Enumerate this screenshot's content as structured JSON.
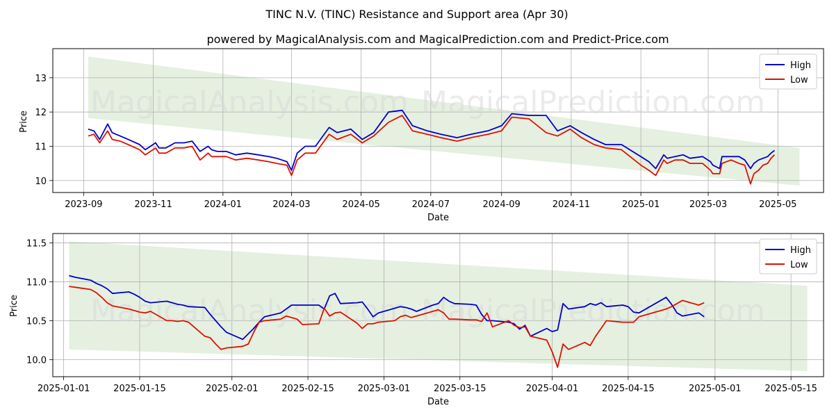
{
  "title": "TINC N.V. (TINC) Resistance and Support area (Apr 30)",
  "subtitle": "powered by MagicalAnalysis.com and MagicalPrediction.com and Predict-Price.com",
  "watermarks": [
    "MagicalAnalysis.com",
    "MagicalPrediction.com"
  ],
  "colors": {
    "high": "#0000cc",
    "low": "#dd1100",
    "band": "#dcebd6",
    "grid": "#b0b0b0"
  },
  "chart_data": [
    {
      "type": "line",
      "xlabel": "Date",
      "ylabel": "Price",
      "grid": true,
      "legend": "top-right",
      "xlim": [
        "2023-08-05",
        "2025-06-10"
      ],
      "ylim": [
        9.65,
        13.85
      ],
      "xticks": [
        "2023-09",
        "2023-11",
        "2024-01",
        "2024-03",
        "2024-05",
        "2024-07",
        "2024-09",
        "2024-11",
        "2025-01",
        "2025-03",
        "2025-05"
      ],
      "xtick_dates": [
        "2023-09-01",
        "2023-11-01",
        "2024-01-01",
        "2024-03-01",
        "2024-05-01",
        "2024-07-01",
        "2024-09-01",
        "2024-11-01",
        "2025-01-01",
        "2025-03-01",
        "2025-05-01"
      ],
      "yticks": [
        10,
        11,
        12,
        13
      ],
      "band": {
        "x": [
          "2023-09-05",
          "2025-05-20"
        ],
        "upper": [
          13.62,
          10.95
        ],
        "lower": [
          11.82,
          9.85
        ]
      },
      "series": [
        {
          "name": "High",
          "x": [
            "2023-09-05",
            "2023-09-10",
            "2023-09-15",
            "2023-09-22",
            "2023-09-26",
            "2023-10-03",
            "2023-10-10",
            "2023-10-20",
            "2023-10-25",
            "2023-11-03",
            "2023-11-06",
            "2023-11-12",
            "2023-11-20",
            "2023-11-28",
            "2023-12-05",
            "2023-12-12",
            "2023-12-19",
            "2023-12-22",
            "2023-12-27",
            "2024-01-04",
            "2024-01-12",
            "2024-01-22",
            "2024-02-01",
            "2024-02-10",
            "2024-02-17",
            "2024-02-26",
            "2024-03-01",
            "2024-03-06",
            "2024-03-13",
            "2024-03-22",
            "2024-04-03",
            "2024-04-10",
            "2024-04-22",
            "2024-05-02",
            "2024-05-12",
            "2024-05-25",
            "2024-06-06",
            "2024-06-15",
            "2024-06-28",
            "2024-07-10",
            "2024-07-24",
            "2024-08-05",
            "2024-08-20",
            "2024-09-01",
            "2024-09-10",
            "2024-09-25",
            "2024-10-10",
            "2024-10-20",
            "2024-10-31",
            "2024-11-10",
            "2024-11-21",
            "2024-12-01",
            "2024-12-15",
            "2025-01-01",
            "2025-01-08",
            "2025-01-14",
            "2025-01-21",
            "2025-01-24",
            "2025-01-31",
            "2025-02-07",
            "2025-02-13",
            "2025-02-24",
            "2025-03-03",
            "2025-03-05",
            "2025-03-11",
            "2025-03-13",
            "2025-03-21",
            "2025-03-28",
            "2025-04-02",
            "2025-04-07",
            "2025-04-10",
            "2025-04-14",
            "2025-04-18",
            "2025-04-22",
            "2025-04-25",
            "2025-04-28"
          ],
          "values": [
            11.5,
            11.45,
            11.2,
            11.65,
            11.4,
            11.3,
            11.2,
            11.05,
            10.9,
            11.1,
            10.95,
            10.95,
            11.1,
            11.1,
            11.15,
            10.85,
            11.0,
            10.9,
            10.85,
            10.85,
            10.75,
            10.8,
            10.75,
            10.7,
            10.65,
            10.55,
            10.3,
            10.8,
            11.0,
            11.0,
            11.55,
            11.4,
            11.5,
            11.2,
            11.4,
            12.0,
            12.05,
            11.6,
            11.45,
            11.35,
            11.25,
            11.35,
            11.45,
            11.6,
            11.95,
            11.9,
            11.9,
            11.45,
            11.6,
            11.4,
            11.2,
            11.05,
            11.05,
            10.7,
            10.55,
            10.35,
            10.75,
            10.65,
            10.7,
            10.75,
            10.65,
            10.7,
            10.55,
            10.45,
            10.35,
            10.7,
            10.7,
            10.7,
            10.6,
            10.35,
            10.5,
            10.6,
            10.65,
            10.7,
            10.8,
            10.88
          ]
        },
        {
          "name": "Low",
          "x": [
            "2023-09-05",
            "2023-09-10",
            "2023-09-15",
            "2023-09-22",
            "2023-09-26",
            "2023-10-03",
            "2023-10-10",
            "2023-10-20",
            "2023-10-25",
            "2023-11-03",
            "2023-11-06",
            "2023-11-12",
            "2023-11-20",
            "2023-11-28",
            "2023-12-05",
            "2023-12-12",
            "2023-12-19",
            "2023-12-22",
            "2023-12-27",
            "2024-01-04",
            "2024-01-12",
            "2024-01-22",
            "2024-02-01",
            "2024-02-10",
            "2024-02-17",
            "2024-02-26",
            "2024-03-01",
            "2024-03-06",
            "2024-03-13",
            "2024-03-22",
            "2024-04-03",
            "2024-04-10",
            "2024-04-22",
            "2024-05-02",
            "2024-05-12",
            "2024-05-25",
            "2024-06-06",
            "2024-06-15",
            "2024-06-28",
            "2024-07-10",
            "2024-07-24",
            "2024-08-05",
            "2024-08-20",
            "2024-09-01",
            "2024-09-10",
            "2024-09-25",
            "2024-10-10",
            "2024-10-20",
            "2024-10-31",
            "2024-11-10",
            "2024-11-21",
            "2024-12-01",
            "2024-12-15",
            "2025-01-01",
            "2025-01-08",
            "2025-01-14",
            "2025-01-21",
            "2025-01-24",
            "2025-01-31",
            "2025-02-07",
            "2025-02-13",
            "2025-02-24",
            "2025-03-03",
            "2025-03-05",
            "2025-03-11",
            "2025-03-13",
            "2025-03-21",
            "2025-03-28",
            "2025-04-02",
            "2025-04-07",
            "2025-04-10",
            "2025-04-14",
            "2025-04-18",
            "2025-04-22",
            "2025-04-25",
            "2025-04-28"
          ],
          "values": [
            11.3,
            11.35,
            11.1,
            11.45,
            11.2,
            11.15,
            11.05,
            10.9,
            10.75,
            10.95,
            10.8,
            10.8,
            10.95,
            10.95,
            11.0,
            10.6,
            10.8,
            10.7,
            10.7,
            10.7,
            10.6,
            10.65,
            10.6,
            10.55,
            10.5,
            10.45,
            10.15,
            10.6,
            10.8,
            10.8,
            11.35,
            11.2,
            11.35,
            11.1,
            11.3,
            11.7,
            11.9,
            11.45,
            11.35,
            11.25,
            11.15,
            11.25,
            11.35,
            11.45,
            11.85,
            11.8,
            11.4,
            11.3,
            11.5,
            11.25,
            11.05,
            10.95,
            10.9,
            10.45,
            10.3,
            10.15,
            10.6,
            10.5,
            10.6,
            10.6,
            10.5,
            10.5,
            10.3,
            10.2,
            10.2,
            10.5,
            10.6,
            10.5,
            10.45,
            9.9,
            10.2,
            10.3,
            10.45,
            10.5,
            10.65,
            10.75
          ]
        }
      ]
    },
    {
      "type": "line",
      "xlabel": "Date",
      "ylabel": "Price",
      "grid": true,
      "legend": "top-right",
      "xlim": [
        "2024-12-30",
        "2025-05-21"
      ],
      "ylim": [
        9.78,
        11.62
      ],
      "xticks": [
        "2025-01-01",
        "2025-01-15",
        "2025-02-01",
        "2025-02-15",
        "2025-03-01",
        "2025-03-15",
        "2025-04-01",
        "2025-04-15",
        "2025-05-01",
        "2025-05-15"
      ],
      "xtick_dates": [
        "2025-01-01",
        "2025-01-15",
        "2025-02-01",
        "2025-02-15",
        "2025-03-01",
        "2025-03-15",
        "2025-04-01",
        "2025-04-15",
        "2025-05-01",
        "2025-05-15"
      ],
      "yticks": [
        "10.0",
        "10.5",
        "11.0",
        "11.5"
      ],
      "band": {
        "x": [
          "2025-01-02",
          "2025-05-18"
        ],
        "upper": [
          11.52,
          10.95
        ],
        "lower": [
          10.13,
          9.85
        ]
      },
      "series": [
        {
          "name": "High",
          "x": [
            "2025-01-02",
            "2025-01-03",
            "2025-01-06",
            "2025-01-07",
            "2025-01-08",
            "2025-01-09",
            "2025-01-10",
            "2025-01-13",
            "2025-01-14",
            "2025-01-15",
            "2025-01-16",
            "2025-01-17",
            "2025-01-20",
            "2025-01-21",
            "2025-01-22",
            "2025-01-23",
            "2025-01-24",
            "2025-01-27",
            "2025-01-28",
            "2025-01-29",
            "2025-01-30",
            "2025-01-31",
            "2025-02-03",
            "2025-02-04",
            "2025-02-05",
            "2025-02-06",
            "2025-02-07",
            "2025-02-10",
            "2025-02-11",
            "2025-02-12",
            "2025-02-13",
            "2025-02-14",
            "2025-02-17",
            "2025-02-18",
            "2025-02-19",
            "2025-02-20",
            "2025-02-21",
            "2025-02-24",
            "2025-02-25",
            "2025-02-26",
            "2025-02-27",
            "2025-02-28",
            "2025-03-03",
            "2025-03-04",
            "2025-03-05",
            "2025-03-06",
            "2025-03-07",
            "2025-03-10",
            "2025-03-11",
            "2025-03-12",
            "2025-03-13",
            "2025-03-14",
            "2025-03-17",
            "2025-03-18",
            "2025-03-19",
            "2025-03-20",
            "2025-03-21",
            "2025-03-24",
            "2025-03-25",
            "2025-03-26",
            "2025-03-27",
            "2025-03-28",
            "2025-03-31",
            "2025-04-01",
            "2025-04-02",
            "2025-04-03",
            "2025-04-04",
            "2025-04-07",
            "2025-04-08",
            "2025-04-09",
            "2025-04-10",
            "2025-04-11",
            "2025-04-14",
            "2025-04-15",
            "2025-04-16",
            "2025-04-17",
            "2025-04-22",
            "2025-04-23",
            "2025-04-24",
            "2025-04-25",
            "2025-04-28",
            "2025-04-29"
          ],
          "values": [
            11.08,
            11.06,
            11.02,
            10.98,
            10.95,
            10.91,
            10.85,
            10.87,
            10.84,
            10.8,
            10.75,
            10.73,
            10.75,
            10.73,
            10.71,
            10.7,
            10.68,
            10.67,
            10.58,
            10.5,
            10.42,
            10.35,
            10.26,
            10.33,
            10.4,
            10.48,
            10.55,
            10.6,
            10.65,
            10.7,
            10.7,
            10.7,
            10.7,
            10.65,
            10.82,
            10.85,
            10.72,
            10.73,
            10.74,
            10.65,
            10.55,
            10.6,
            10.66,
            10.68,
            10.67,
            10.65,
            10.62,
            10.7,
            10.72,
            10.8,
            10.75,
            10.72,
            10.71,
            10.7,
            10.58,
            10.5,
            10.5,
            10.48,
            10.46,
            10.39,
            10.44,
            10.3,
            10.4,
            10.36,
            10.38,
            10.72,
            10.65,
            10.68,
            10.72,
            10.7,
            10.73,
            10.68,
            10.7,
            10.68,
            10.61,
            10.6,
            10.8,
            10.71,
            10.6,
            10.56,
            10.6,
            10.55
          ]
        },
        {
          "name": "Low",
          "x": [
            "2025-01-02",
            "2025-01-03",
            "2025-01-06",
            "2025-01-07",
            "2025-01-08",
            "2025-01-09",
            "2025-01-10",
            "2025-01-13",
            "2025-01-14",
            "2025-01-15",
            "2025-01-16",
            "2025-01-17",
            "2025-01-20",
            "2025-01-21",
            "2025-01-22",
            "2025-01-23",
            "2025-01-24",
            "2025-01-27",
            "2025-01-28",
            "2025-01-29",
            "2025-01-30",
            "2025-01-31",
            "2025-02-03",
            "2025-02-04",
            "2025-02-05",
            "2025-02-06",
            "2025-02-07",
            "2025-02-10",
            "2025-02-11",
            "2025-02-12",
            "2025-02-13",
            "2025-02-14",
            "2025-02-17",
            "2025-02-18",
            "2025-02-19",
            "2025-02-20",
            "2025-02-21",
            "2025-02-24",
            "2025-02-25",
            "2025-02-26",
            "2025-02-27",
            "2025-02-28",
            "2025-03-03",
            "2025-03-04",
            "2025-03-05",
            "2025-03-06",
            "2025-03-07",
            "2025-03-10",
            "2025-03-11",
            "2025-03-12",
            "2025-03-13",
            "2025-03-14",
            "2025-03-17",
            "2025-03-18",
            "2025-03-19",
            "2025-03-20",
            "2025-03-21",
            "2025-03-24",
            "2025-03-25",
            "2025-03-26",
            "2025-03-27",
            "2025-03-28",
            "2025-03-31",
            "2025-04-01",
            "2025-04-02",
            "2025-04-03",
            "2025-04-04",
            "2025-04-07",
            "2025-04-08",
            "2025-04-09",
            "2025-04-10",
            "2025-04-11",
            "2025-04-14",
            "2025-04-15",
            "2025-04-16",
            "2025-04-17",
            "2025-04-22",
            "2025-04-23",
            "2025-04-24",
            "2025-04-25",
            "2025-04-28",
            "2025-04-29"
          ],
          "values": [
            10.94,
            10.93,
            10.9,
            10.86,
            10.8,
            10.73,
            10.69,
            10.65,
            10.63,
            10.61,
            10.6,
            10.62,
            10.5,
            10.5,
            10.49,
            10.5,
            10.48,
            10.3,
            10.28,
            10.2,
            10.13,
            10.15,
            10.17,
            10.2,
            10.35,
            10.48,
            10.5,
            10.52,
            10.56,
            10.54,
            10.52,
            10.45,
            10.46,
            10.66,
            10.56,
            10.6,
            10.61,
            10.47,
            10.4,
            10.46,
            10.46,
            10.48,
            10.5,
            10.55,
            10.57,
            10.54,
            10.56,
            10.62,
            10.64,
            10.6,
            10.52,
            10.52,
            10.51,
            10.51,
            10.49,
            10.6,
            10.42,
            10.5,
            10.44,
            10.41,
            10.42,
            10.3,
            10.25,
            10.1,
            9.9,
            10.2,
            10.13,
            10.22,
            10.18,
            10.3,
            10.4,
            10.5,
            10.48,
            10.48,
            10.48,
            10.55,
            10.65,
            10.68,
            10.72,
            10.76,
            10.7,
            10.73
          ]
        }
      ]
    }
  ]
}
